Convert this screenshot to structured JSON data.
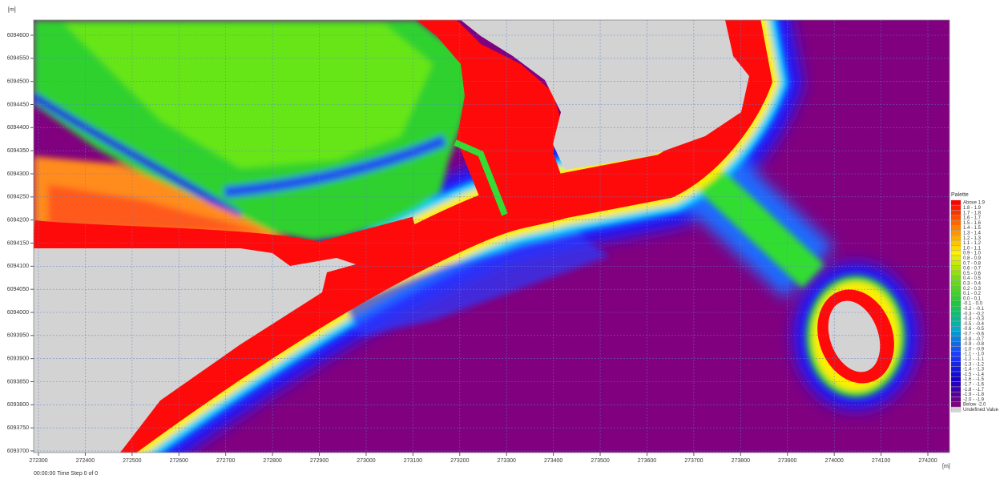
{
  "map": {
    "x_unit": "[m]",
    "y_unit": "[m]",
    "xticks": [
      272300,
      272400,
      272500,
      272600,
      272700,
      272800,
      272900,
      273000,
      273100,
      273200,
      273300,
      273400,
      273500,
      273600,
      273700,
      273800,
      273900,
      274000,
      274100,
      274200
    ],
    "yticks": [
      6093700,
      6093750,
      6093800,
      6093850,
      6093900,
      6093950,
      6094000,
      6094050,
      6094100,
      6094150,
      6094200,
      6094250,
      6094300,
      6094350,
      6094400,
      6094450,
      6094500,
      6094550,
      6094600
    ]
  },
  "legend": {
    "title": "Palette",
    "items": [
      "Above 1.9",
      "1.8 - 1.9",
      "1.7 - 1.8",
      "1.6 - 1.7",
      "1.5 - 1.6",
      "1.4 - 1.5",
      "1.3 - 1.4",
      "1.2 - 1.3",
      "1.1 - 1.2",
      "1.0 - 1.1",
      "0.9 - 1.0",
      "0.8 - 0.9",
      "0.7 - 0.8",
      "0.6 - 0.7",
      "0.5 - 0.6",
      "0.4 - 0.5",
      "0.3 - 0.4",
      "0.2 - 0.3",
      "0.1 - 0.2",
      "0.0 - 0.1",
      "-0.1 - 0.0",
      "-0.2 - -0.1",
      "-0.3 - -0.2",
      "-0.4 - -0.3",
      "-0.5 - -0.4",
      "-0.6 - -0.5",
      "-0.7 - -0.6",
      "-0.8 - -0.7",
      "-0.9 - -0.8",
      "-1.0 - -0.9",
      "-1.1 - -1.0",
      "-1.2 - -1.1",
      "-1.3 - -1.2",
      "-1.4 - -1.3",
      "-1.5 - -1.4",
      "-1.6 - -1.5",
      "-1.7 - -1.6",
      "-1.8 - -1.7",
      "-1.9 - -1.8",
      "-2.0 - -1.9",
      "Below -2.0",
      "Undefined Value"
    ]
  },
  "status": "00:00:00 Time Step 0 of 0"
}
